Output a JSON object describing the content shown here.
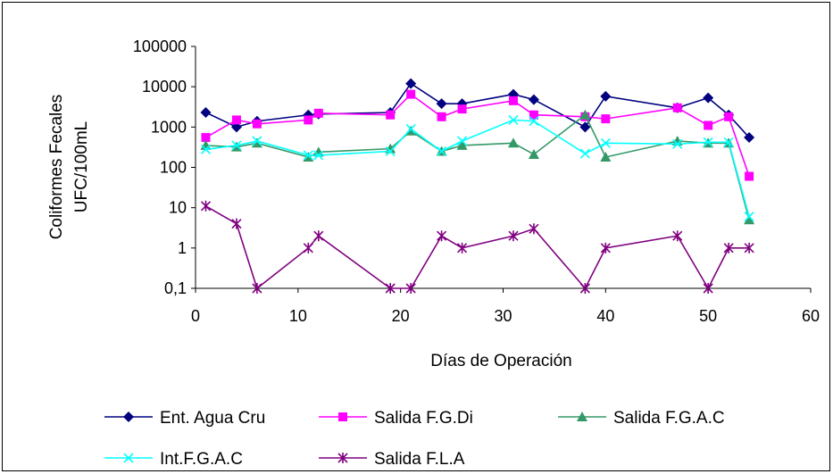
{
  "chart_data": {
    "type": "line",
    "xlabel": "Días de Operación",
    "ylabel": [
      "Coliformes Fecales",
      "UFC/100mL"
    ],
    "xlim": [
      0,
      60
    ],
    "ylim": [
      0.1,
      100000
    ],
    "yscale": "log",
    "x_ticks": [
      "0",
      "10",
      "20",
      "30",
      "40",
      "50",
      "60"
    ],
    "y_ticks": [
      "0,1",
      "1",
      "10",
      "100",
      "1000",
      "10000",
      "100000"
    ],
    "grid": false,
    "legend_position": "bottom",
    "series": [
      {
        "name": "Ent. Agua Cru",
        "color": "#000080",
        "marker": "diamond",
        "x": [
          1,
          4,
          6,
          11,
          12,
          19,
          21,
          24,
          26,
          31,
          33,
          38,
          40,
          47,
          50,
          52,
          54
        ],
        "y": [
          2300,
          1000,
          1400,
          2000,
          2100,
          2300,
          12000,
          3800,
          3800,
          6500,
          4800,
          1000,
          5800,
          3000,
          5300,
          2000,
          550
        ]
      },
      {
        "name": "Salida F.G.Di",
        "color": "#FF00FF",
        "marker": "square",
        "x": [
          1,
          4,
          6,
          11,
          12,
          19,
          21,
          24,
          26,
          31,
          33,
          38,
          40,
          47,
          50,
          52,
          54
        ],
        "y": [
          550,
          1500,
          1200,
          1500,
          2200,
          2000,
          6500,
          1800,
          2800,
          4500,
          2000,
          1800,
          1600,
          3000,
          1100,
          1800,
          60
        ]
      },
      {
        "name": "Salida F.G.A.C",
        "color": "#339966",
        "marker": "triangle",
        "x": [
          1,
          4,
          6,
          11,
          12,
          19,
          21,
          24,
          26,
          31,
          33,
          38,
          40,
          47,
          50,
          52,
          54
        ],
        "y": [
          350,
          320,
          400,
          180,
          240,
          290,
          800,
          250,
          350,
          400,
          210,
          2000,
          180,
          450,
          400,
          400,
          5
        ]
      },
      {
        "name": "Int.F.G.A.C",
        "color": "#00FFFF",
        "marker": "x",
        "x": [
          1,
          4,
          6,
          11,
          12,
          19,
          21,
          24,
          26,
          31,
          33,
          38,
          40,
          47,
          50,
          52,
          54
        ],
        "y": [
          280,
          350,
          450,
          200,
          200,
          250,
          900,
          250,
          450,
          1500,
          1400,
          220,
          400,
          380,
          420,
          420,
          6
        ]
      },
      {
        "name": "Salida F.L.A",
        "color": "#800080",
        "marker": "star",
        "x": [
          1,
          4,
          6,
          11,
          12,
          19,
          21,
          24,
          26,
          31,
          33,
          38,
          40,
          47,
          50,
          52,
          54
        ],
        "y": [
          11,
          4,
          0.1,
          1,
          2,
          0.1,
          0.1,
          2,
          1,
          2,
          3,
          0.1,
          1,
          2,
          0.1,
          1,
          1
        ]
      }
    ]
  }
}
